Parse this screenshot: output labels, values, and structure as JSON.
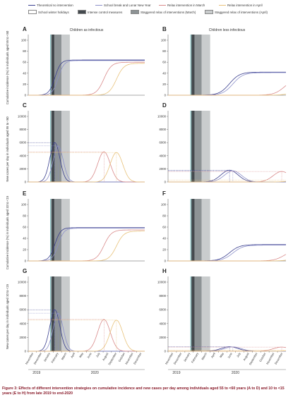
{
  "legend": {
    "items": [
      {
        "label": "Theoretical no intervention",
        "kind": "line",
        "color": "#3a3f8f"
      },
      {
        "label": "School break and Lunar New Year",
        "kind": "line",
        "color": "#8b8fc9"
      },
      {
        "label": "Relax intervention in March",
        "kind": "line",
        "color": "#d98a8a"
      },
      {
        "label": "Relax intervention in April",
        "kind": "line",
        "color": "#e8c27a"
      },
      {
        "label": "School winter holidays",
        "kind": "box",
        "color": "#ffffff"
      },
      {
        "label": "Intense control measures",
        "kind": "box",
        "color": "#444a4e"
      },
      {
        "label": "Staggered relax of interventions (March)",
        "kind": "box",
        "color": "#8d9395"
      },
      {
        "label": "Staggered relax of interventions (April)",
        "kind": "box",
        "color": "#c9cccd"
      }
    ]
  },
  "columns": {
    "left": "Children as infectious",
    "right": "Children less infectious"
  },
  "ylabels": {
    "cum_old": "Cumulative incidence (%) in individuals aged 55 to <60",
    "new_old": "New cases per day in individuals aged 55 to <60",
    "cum_young": "Cumulative incidence (%) in individuals aged 10 to <15",
    "new_young": "New cases per day in individuals aged 10 to <15"
  },
  "months": [
    "November",
    "December",
    "January",
    "February",
    "March",
    "April",
    "May",
    "June",
    "July",
    "August",
    "September",
    "October",
    "November",
    "December"
  ],
  "years": [
    "2019",
    "2020"
  ],
  "caption": {
    "bold": "Figure 3: Effects of different intervention strategies on cumulative incidence and new cases per day among individuals aged 55 to <60 years (A to D) and 10 to <15 years (E to H) from late 2019 to end-2020",
    "rest": ""
  },
  "colors": {
    "none": "#3a3f8f",
    "school": "#8b8fc9",
    "march": "#d98a8a",
    "april": "#e8c27a",
    "intense": "#444a4e",
    "relax_march": "#8d9395",
    "relax_april": "#c9cccd",
    "holiday_line": "#2a8a8a"
  },
  "chart_data": [
    {
      "panel": "A",
      "type": "line",
      "ylim": [
        0,
        100
      ],
      "yticks": [
        0,
        20,
        40,
        60,
        80,
        100
      ],
      "series": [
        {
          "name": "Theoretical no intervention",
          "midpoint": 3.2,
          "width": 0.35,
          "max": 64
        },
        {
          "name": "School break and Lunar New Year",
          "midpoint": 3.6,
          "width": 0.35,
          "max": 63
        },
        {
          "name": "Relax intervention in March",
          "midpoint": 9.1,
          "width": 0.45,
          "max": 60
        },
        {
          "name": "Relax intervention in April",
          "midpoint": 10.6,
          "width": 0.45,
          "max": 58
        }
      ]
    },
    {
      "panel": "B",
      "type": "line",
      "ylim": [
        0,
        100
      ],
      "yticks": [
        0,
        20,
        40,
        60,
        80,
        100
      ],
      "series": [
        {
          "name": "Theoretical no intervention",
          "midpoint": 7.3,
          "width": 0.6,
          "max": 42
        },
        {
          "name": "School break and Lunar New Year",
          "midpoint": 7.7,
          "width": 0.6,
          "max": 41
        },
        {
          "name": "Relax intervention in March",
          "midpoint": 13.8,
          "width": 0.6,
          "max": 30
        },
        {
          "name": "Relax intervention in April",
          "midpoint": 15.5,
          "width": 0.6,
          "max": 30
        }
      ]
    },
    {
      "panel": "C",
      "type": "line",
      "ylim": [
        0,
        10000
      ],
      "yticks": [
        0,
        2000,
        4000,
        6000,
        8000,
        10000
      ],
      "series": [
        {
          "name": "Theoretical no intervention",
          "peak_x": 3.2,
          "width": 0.6,
          "peak": 6000
        },
        {
          "name": "School break and Lunar New Year",
          "peak_x": 3.6,
          "width": 0.6,
          "peak": 5500
        },
        {
          "name": "Relax intervention in March",
          "peak_x": 9.1,
          "width": 0.75,
          "peak": 4600
        },
        {
          "name": "Relax intervention in April",
          "peak_x": 10.6,
          "width": 0.75,
          "peak": 4500
        }
      ]
    },
    {
      "panel": "D",
      "type": "line",
      "ylim": [
        0,
        10000
      ],
      "yticks": [
        0,
        2000,
        4000,
        6000,
        8000,
        10000
      ],
      "series": [
        {
          "name": "Theoretical no intervention",
          "peak_x": 7.3,
          "width": 1.0,
          "peak": 1800
        },
        {
          "name": "School break and Lunar New Year",
          "peak_x": 7.7,
          "width": 1.0,
          "peak": 1700
        },
        {
          "name": "Relax intervention in March",
          "peak_x": 13.5,
          "width": 1.0,
          "peak": 1600
        },
        {
          "name": "Relax intervention in April",
          "peak_x": 15.5,
          "width": 1.0,
          "peak": 300
        }
      ]
    },
    {
      "panel": "E",
      "type": "line",
      "ylim": [
        0,
        100
      ],
      "yticks": [
        0,
        20,
        40,
        60,
        80,
        100
      ],
      "series": [
        {
          "name": "Theoretical no intervention",
          "midpoint": 3.2,
          "width": 0.35,
          "max": 59
        },
        {
          "name": "School break and Lunar New Year",
          "midpoint": 3.6,
          "width": 0.35,
          "max": 58
        },
        {
          "name": "Relax intervention in March",
          "midpoint": 9.1,
          "width": 0.45,
          "max": 55
        },
        {
          "name": "Relax intervention in April",
          "midpoint": 10.6,
          "width": 0.45,
          "max": 53
        }
      ]
    },
    {
      "panel": "F",
      "type": "line",
      "ylim": [
        0,
        100
      ],
      "yticks": [
        0,
        20,
        40,
        60,
        80,
        100
      ],
      "series": [
        {
          "name": "Theoretical no intervention",
          "midpoint": 7.3,
          "width": 0.6,
          "max": 29
        },
        {
          "name": "School break and Lunar New Year",
          "midpoint": 7.7,
          "width": 0.6,
          "max": 28
        },
        {
          "name": "Relax intervention in March",
          "midpoint": 13.8,
          "width": 0.6,
          "max": 20
        },
        {
          "name": "Relax intervention in April",
          "midpoint": 15.5,
          "width": 0.6,
          "max": 20
        }
      ]
    },
    {
      "panel": "G",
      "type": "line",
      "ylim": [
        0,
        10000
      ],
      "yticks": [
        0,
        2000,
        4000,
        6000,
        8000,
        10000
      ],
      "series": [
        {
          "name": "Theoretical no intervention",
          "peak_x": 3.2,
          "width": 0.6,
          "peak": 6000
        },
        {
          "name": "School break and Lunar New Year",
          "peak_x": 3.6,
          "width": 0.6,
          "peak": 5500
        },
        {
          "name": "Relax intervention in March",
          "peak_x": 9.1,
          "width": 0.75,
          "peak": 4600
        },
        {
          "name": "Relax intervention in April",
          "peak_x": 10.6,
          "width": 0.75,
          "peak": 4500
        }
      ]
    },
    {
      "panel": "H",
      "type": "line",
      "ylim": [
        0,
        10000
      ],
      "yticks": [
        0,
        2000,
        4000,
        6000,
        8000,
        10000
      ],
      "series": [
        {
          "name": "Theoretical no intervention",
          "peak_x": 7.3,
          "width": 1.0,
          "peak": 650
        },
        {
          "name": "School break and Lunar New Year",
          "peak_x": 7.7,
          "width": 1.0,
          "peak": 620
        },
        {
          "name": "Relax intervention in March",
          "peak_x": 13.5,
          "width": 1.0,
          "peak": 600
        },
        {
          "name": "Relax intervention in April",
          "peak_x": 15.5,
          "width": 1.0,
          "peak": 150
        }
      ]
    }
  ]
}
